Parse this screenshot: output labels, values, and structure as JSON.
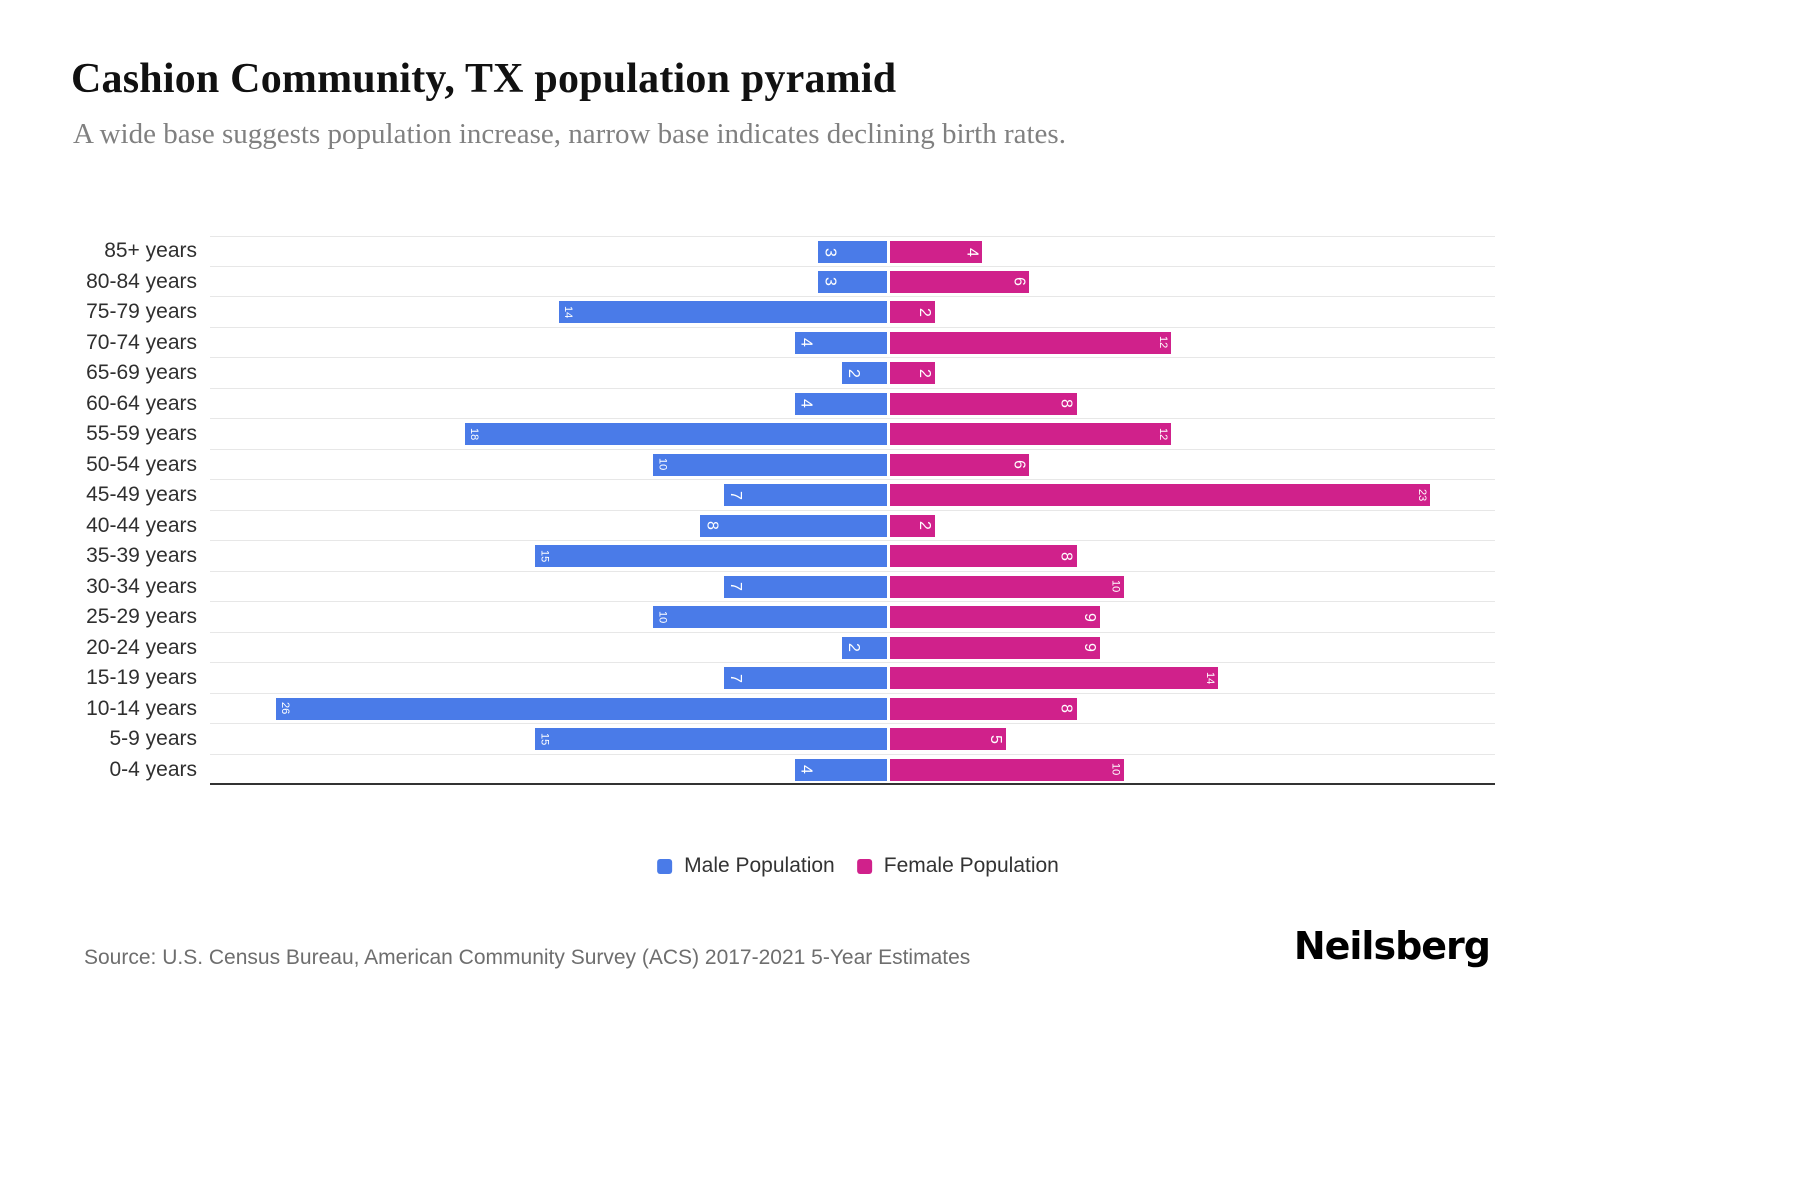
{
  "header": {
    "title": "Cashion Community, TX population pyramid",
    "subtitle": "A wide base suggests population increase, narrow base indicates declining birth rates."
  },
  "footer": {
    "source": "Source: U.S. Census Bureau, American Community Survey (ACS) 2017-2021 5-Year Estimates",
    "brand": "Neilsberg"
  },
  "colors": {
    "male": "#4A7BE8",
    "female": "#D0218B",
    "grid": "#E7E7E7",
    "axis_line": "#333333",
    "bar_label": "#FFFFFF",
    "subtitle_text": "#808080",
    "source_text": "#6E6E6E",
    "category_text": "#2F2F2F"
  },
  "chart_data": {
    "type": "bar",
    "subtype": "population-pyramid",
    "orientation": "horizontal",
    "title": "Cashion Community, TX population pyramid",
    "categories": [
      "85+ years",
      "80-84 years",
      "75-79 years",
      "70-74 years",
      "65-69 years",
      "60-64 years",
      "55-59 years",
      "50-54 years",
      "45-49 years",
      "40-44 years",
      "35-39 years",
      "30-34 years",
      "25-29 years",
      "20-24 years",
      "15-19 years",
      "10-14 years",
      "5-9 years",
      "0-4 years"
    ],
    "series": [
      {
        "name": "Male Population",
        "side": "left",
        "color": "#4A7BE8",
        "values": [
          3,
          3,
          14,
          4,
          2,
          4,
          18,
          10,
          7,
          8,
          15,
          7,
          10,
          2,
          7,
          26,
          15,
          4
        ]
      },
      {
        "name": "Female Population",
        "side": "right",
        "color": "#D0218B",
        "values": [
          4,
          6,
          2,
          12,
          2,
          8,
          12,
          6,
          23,
          2,
          8,
          10,
          9,
          9,
          14,
          8,
          5,
          10
        ]
      }
    ],
    "value_labels": "inside bar end, rotated vertical, white",
    "legend_position": "bottom-center",
    "grid": "horizontal-light",
    "x_axis_ticks": "none"
  }
}
